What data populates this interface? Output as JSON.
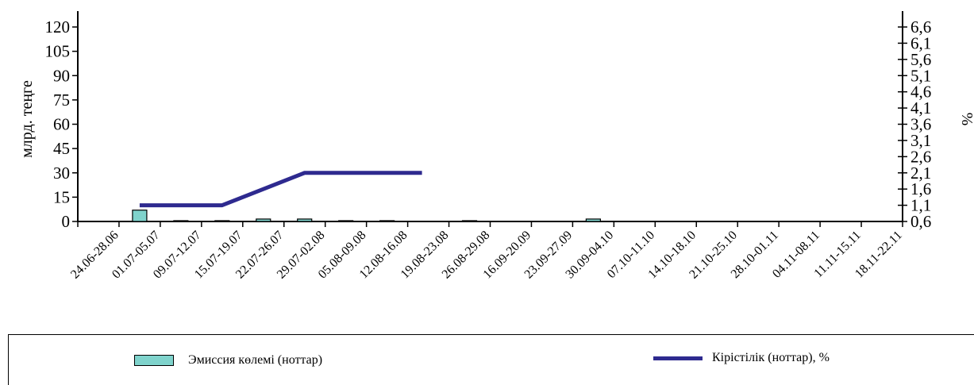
{
  "chart_data": {
    "type": "bar",
    "categories": [
      "24.06-28.06",
      "01.07-05.07",
      "09.07-12.07",
      "15.07-19.07",
      "22.07-26.07",
      "29.07-02.08",
      "05.08-09.08",
      "12.08-16.08",
      "19.08-23.08",
      "26.08-29.08",
      "16.09-20.09",
      "23.09-27.09",
      "30.09-04.10",
      "07.10-11.10",
      "14.10-18.10",
      "21.10-25.10",
      "28.10-01.11",
      "04.11-08.11",
      "11.11-15.11",
      "18.11-22.11"
    ],
    "series": [
      {
        "name": "Эмиссия көлемі (ноттар)",
        "type": "bar",
        "axis": "left",
        "values": [
          0,
          7,
          0.5,
          0.5,
          1.5,
          1.5,
          0.5,
          0.5,
          0,
          0.5,
          0,
          0,
          1.5,
          0,
          0,
          0,
          0,
          0,
          0,
          0
        ]
      },
      {
        "name": "Кірістілік (ноттар),  %",
        "type": "line",
        "axis": "right",
        "values": [
          null,
          1.1,
          1.1,
          1.1,
          1.6,
          2.1,
          2.1,
          2.1,
          null,
          null,
          null,
          null,
          null,
          null,
          null,
          null,
          null,
          null,
          null,
          null
        ]
      }
    ],
    "y_left": {
      "label": "млрд. теңге",
      "ticks": [
        "0",
        "15",
        "30",
        "45",
        "60",
        "75",
        "90",
        "105",
        "120"
      ],
      "range": [
        0,
        120
      ]
    },
    "y_right": {
      "label": "%",
      "ticks": [
        "0,6",
        "1,1",
        "1,6",
        "2,1",
        "2,6",
        "3,1",
        "3,6",
        "4,1",
        "4,6",
        "5,1",
        "5,6",
        "6,1",
        "6,6"
      ],
      "range": [
        0.6,
        6.6
      ]
    },
    "title": "",
    "xlabel": "",
    "grid": false,
    "legend": "bottom",
    "colors": {
      "bar_fill": "#7fd3cc",
      "bar_stroke": "#000000",
      "line": "#2e2a8f"
    }
  }
}
